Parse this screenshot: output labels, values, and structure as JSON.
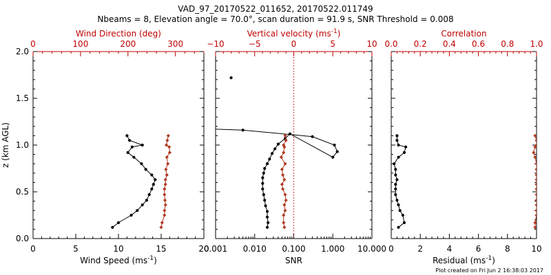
{
  "figure": {
    "title_line1": "VAD_97_20170522_011652, 20170522.011749",
    "title_line2": "Nbeams = 8, Elevation angle = 70.0°, scan duration = 91.9 s, SNR Threshold = 0.008",
    "footer": "Plot created on Fri Jun  2 16:38:03 2017",
    "colors": {
      "black": "#000000",
      "red": "#c00000",
      "red_series": "#b03a22"
    }
  },
  "chart_data": [
    {
      "type": "line",
      "ylabel": "z (km AGL)",
      "ylim": [
        0,
        2.0
      ],
      "yticks": [
        "0.0",
        "0.5",
        "1.0",
        "1.5",
        "2.0"
      ],
      "bottom_axis": {
        "label": "Wind Speed (ms",
        "unit_sup": "-1",
        "unit_close": ")",
        "xlim": [
          0,
          20
        ],
        "ticks": [
          "0",
          "5",
          "10",
          "15",
          "20"
        ],
        "scale": "linear"
      },
      "top_axis": {
        "label": "Wind Direction (deg)",
        "xlim": [
          0,
          360
        ],
        "ticks": [
          "0",
          "100",
          "200",
          "300"
        ],
        "tick_values": [
          0,
          100,
          200,
          300
        ],
        "color": "red"
      },
      "series": [
        {
          "axis": "bottom",
          "color": "black",
          "x": [
            9.3,
            10.0,
            11.5,
            12.2,
            12.8,
            13.3,
            13.6,
            13.9,
            14.1,
            14.3,
            13.9,
            13.2,
            12.7,
            11.8,
            11.1,
            11.6,
            12.8,
            11.3,
            11.0
          ],
          "y": [
            0.12,
            0.17,
            0.25,
            0.3,
            0.36,
            0.41,
            0.47,
            0.53,
            0.58,
            0.63,
            0.68,
            0.74,
            0.8,
            0.87,
            0.92,
            0.98,
            1.0,
            1.05,
            1.1
          ]
        },
        {
          "axis": "top",
          "color": "red_series",
          "x": [
            270,
            272,
            277,
            277,
            279,
            278,
            277,
            277,
            279,
            279,
            282,
            280,
            284,
            282,
            288,
            287,
            281,
            283,
            285
          ],
          "y": [
            0.12,
            0.17,
            0.25,
            0.3,
            0.36,
            0.41,
            0.47,
            0.53,
            0.58,
            0.63,
            0.68,
            0.74,
            0.8,
            0.87,
            0.92,
            0.98,
            1.0,
            1.05,
            1.1
          ]
        }
      ]
    },
    {
      "type": "line",
      "ylim": [
        0,
        2.0
      ],
      "bottom_axis": {
        "label": "SNR",
        "xlim": [
          0.001,
          10.0
        ],
        "ticks": [
          "0.001",
          "0.010",
          "0.100",
          "1.000",
          "10.000"
        ],
        "tick_values": [
          0.001,
          0.01,
          0.1,
          1,
          10
        ],
        "scale": "log"
      },
      "top_axis": {
        "label": "Vertical velocity (ms",
        "unit_sup": "-1",
        "unit_close": ")",
        "xlim": [
          -10,
          10
        ],
        "ticks": [
          "−10",
          "−5",
          "0",
          "5",
          "10"
        ],
        "tick_values": [
          -10,
          -5,
          0,
          5,
          10
        ],
        "color": "red"
      },
      "reference_line": {
        "axis": "top",
        "x": 0,
        "style": "dotted",
        "color": "red"
      },
      "series": [
        {
          "axis": "bottom",
          "color": "black",
          "style": "markers+line",
          "x": [
            0.021,
            0.022,
            0.021,
            0.021,
            0.019,
            0.018,
            0.017,
            0.016,
            0.016,
            0.016,
            0.017,
            0.018,
            0.021,
            0.024,
            0.028,
            0.033,
            0.04,
            0.06,
            0.08,
            1.0,
            1.3,
            1.1,
            0.3,
            0.005
          ],
          "y": [
            0.12,
            0.17,
            0.23,
            0.29,
            0.35,
            0.41,
            0.47,
            0.53,
            0.59,
            0.65,
            0.7,
            0.75,
            0.8,
            0.85,
            0.91,
            0.96,
            1.01,
            1.07,
            1.12,
            0.87,
            0.93,
            1.0,
            1.09,
            1.16
          ]
        },
        {
          "axis": "bottom",
          "color": "black",
          "style": "markers",
          "x": [
            0.0025
          ],
          "y": [
            1.72
          ]
        },
        {
          "axis": "top",
          "color": "red_series",
          "x": [
            -1.2,
            -1.3,
            -1.3,
            -1.1,
            -1.2,
            -1.0,
            -1.1,
            -1.4,
            -1.5,
            -1.2,
            -1.4,
            -1.5,
            -1.1,
            -1.6,
            -1.3,
            -1.2,
            -1.3,
            -1.0,
            -1.1
          ],
          "y": [
            0.12,
            0.17,
            0.25,
            0.3,
            0.36,
            0.41,
            0.47,
            0.53,
            0.58,
            0.63,
            0.68,
            0.74,
            0.8,
            0.87,
            0.92,
            0.98,
            1.0,
            1.05,
            1.1
          ]
        }
      ],
      "open_line": {
        "axis": "bottom",
        "x": [
          0.001,
          0.005
        ],
        "y": [
          1.17,
          1.16
        ]
      }
    },
    {
      "type": "line",
      "ylim": [
        0,
        2.0
      ],
      "bottom_axis": {
        "label": "Residual (ms",
        "unit_sup": "-1",
        "unit_close": ")",
        "xlim": [
          0,
          10
        ],
        "ticks": [
          "0",
          "2",
          "4",
          "6",
          "8",
          "10"
        ],
        "scale": "linear"
      },
      "top_axis": {
        "label": "Correlation",
        "xlim": [
          0.0,
          1.0
        ],
        "ticks": [
          "0.0",
          "0.2",
          "0.4",
          "0.6",
          "0.8",
          "1.0"
        ],
        "tick_values": [
          0,
          0.2,
          0.4,
          0.6,
          0.8,
          1.0
        ],
        "color": "red"
      },
      "series": [
        {
          "axis": "bottom",
          "color": "black",
          "x": [
            0.5,
            0.9,
            0.8,
            0.6,
            0.5,
            0.4,
            0.3,
            0.3,
            0.3,
            0.4,
            0.3,
            0.3,
            0.2,
            0.5,
            0.9,
            1.0,
            0.5,
            0.4,
            0.4
          ],
          "y": [
            0.12,
            0.17,
            0.25,
            0.3,
            0.36,
            0.41,
            0.47,
            0.53,
            0.58,
            0.63,
            0.68,
            0.74,
            0.8,
            0.87,
            0.92,
            0.98,
            1.0,
            1.05,
            1.1
          ]
        },
        {
          "axis": "top",
          "color": "red_series",
          "x": [
            0.99,
            0.99,
            1.0,
            1.0,
            1.0,
            1.0,
            1.0,
            1.0,
            1.0,
            1.0,
            1.0,
            1.0,
            1.0,
            0.99,
            0.98,
            0.99,
            1.0,
            1.0,
            0.99
          ],
          "y": [
            0.12,
            0.17,
            0.25,
            0.3,
            0.36,
            0.41,
            0.47,
            0.53,
            0.58,
            0.63,
            0.68,
            0.74,
            0.8,
            0.87,
            0.92,
            0.98,
            1.0,
            1.05,
            1.1
          ]
        }
      ]
    }
  ]
}
